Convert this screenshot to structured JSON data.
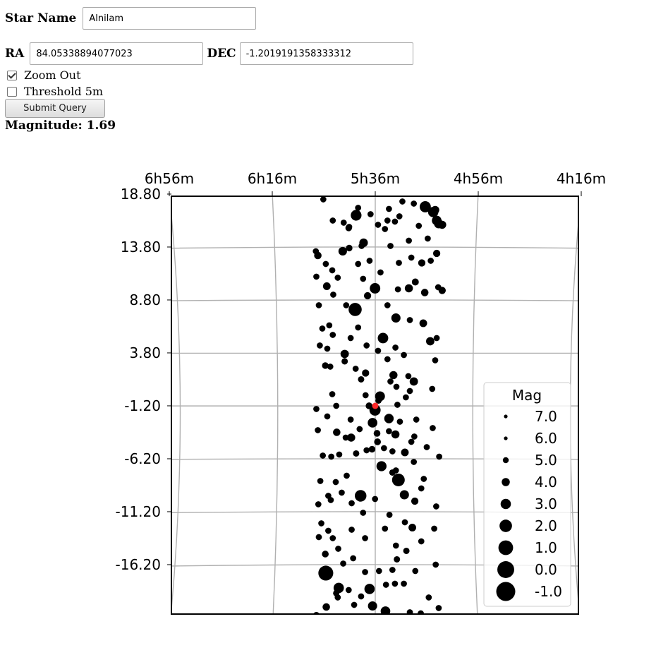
{
  "form": {
    "star_name_label": "Star Name",
    "star_name_value": "Alnilam",
    "ra_label": "RA",
    "ra_value": "84.05338894077023",
    "dec_label": "DEC",
    "dec_value": "-1.2019191358333312",
    "zoom_out_label": "Zoom Out",
    "zoom_out_checked": true,
    "threshold_label": "Threshold 5m",
    "threshold_checked": false,
    "submit_label": "Submit Query",
    "magnitude_text": "Magnitude: 1.69"
  },
  "chart_data": {
    "type": "scatter",
    "title": "",
    "x_tick_labels": [
      "6h56m",
      "6h16m",
      "5h36m",
      "4h56m",
      "4h16m"
    ],
    "y_tick_labels": [
      "18.80",
      "13.80",
      "8.80",
      "3.80",
      "-1.20",
      "-6.20",
      "-11.20",
      "-16.20"
    ],
    "y_tick_values": [
      18.8,
      13.8,
      8.8,
      3.8,
      -1.2,
      -6.2,
      -11.2,
      -16.2
    ],
    "ylim": [
      -21.0,
      18.8
    ],
    "grid": true,
    "center": {
      "ra_deg": 84.05338894077023,
      "dec_deg": -1.2019191358333312,
      "color": "#ff2a2a"
    },
    "legend": {
      "title": "Mag",
      "placement": "lower-right",
      "entries": [
        "7.0",
        "6.0",
        "5.0",
        "4.0",
        "3.0",
        "2.0",
        "1.0",
        "0.0",
        "-1.0"
      ],
      "magnitudes": [
        7.0,
        6.0,
        5.0,
        4.0,
        3.0,
        2.0,
        1.0,
        0.0,
        -1.0
      ]
    },
    "colors": {
      "star": "#000000",
      "grid": "#b0b0b0",
      "legend_overlap": "#c8c8c8"
    },
    "stars": [
      {
        "ra": 87.9,
        "dec": 16.8,
        "mag": 2.8
      },
      {
        "ra": 74.0,
        "dec": 17.6,
        "mag": 2.6
      },
      {
        "ra": 72.4,
        "dec": 17.1,
        "mag": 3.0
      },
      {
        "ra": 71.7,
        "dec": 16.3,
        "mag": 3.3
      },
      {
        "ra": 71.3,
        "dec": 16.0,
        "mag": 3.5
      },
      {
        "ra": 70.6,
        "dec": 15.9,
        "mag": 4.0
      },
      {
        "ra": 90.6,
        "dec": 13.4,
        "mag": 3.8
      },
      {
        "ra": 95.6,
        "dec": 13.0,
        "mag": 4.3
      },
      {
        "ra": 86.4,
        "dec": 14.2,
        "mag": 3.8
      },
      {
        "ra": 84.1,
        "dec": 9.9,
        "mag": 2.9
      },
      {
        "ra": 88.1,
        "dec": 7.9,
        "mag": 1.7
      },
      {
        "ra": 82.5,
        "dec": 5.2,
        "mag": 2.9
      },
      {
        "ra": 79.9,
        "dec": 7.1,
        "mag": 3.5
      },
      {
        "ra": 77.3,
        "dec": 9.9,
        "mag": 4.0
      },
      {
        "ra": 76.0,
        "dec": 10.5,
        "mag": 4.5
      },
      {
        "ra": 93.8,
        "dec": 10.1,
        "mag": 4.2
      },
      {
        "ra": 90.2,
        "dec": 3.7,
        "mag": 3.9
      },
      {
        "ra": 94.1,
        "dec": 2.6,
        "mag": 4.7
      },
      {
        "ra": 83.1,
        "dec": -0.3,
        "mag": 3.2
      },
      {
        "ra": 84.1,
        "dec": -1.6,
        "mag": 2.6
      },
      {
        "ra": 84.6,
        "dec": -2.8,
        "mag": 3.3
      },
      {
        "ra": 81.3,
        "dec": -2.4,
        "mag": 3.4
      },
      {
        "ra": 88.9,
        "dec": -4.2,
        "mag": 4.0
      },
      {
        "ra": 82.8,
        "dec": -6.9,
        "mag": 3.1
      },
      {
        "ra": 79.4,
        "dec": -8.2,
        "mag": 1.9
      },
      {
        "ra": 78.2,
        "dec": -9.6,
        "mag": 3.5
      },
      {
        "ra": 87.0,
        "dec": -9.7,
        "mag": 2.4
      },
      {
        "ra": 94.0,
        "dec": -17.0,
        "mag": 0.9
      },
      {
        "ra": 85.2,
        "dec": -18.5,
        "mag": 3.0
      },
      {
        "ra": 91.4,
        "dec": -18.4,
        "mag": 3.0
      },
      {
        "ra": 82.0,
        "dec": -20.6,
        "mag": 3.3
      },
      {
        "ra": 84.6,
        "dec": -20.1,
        "mag": 3.5
      },
      {
        "ra": 73.0,
        "dec": 4.9,
        "mag": 3.9
      },
      {
        "ra": 76.3,
        "dec": 1.1,
        "mag": 3.9
      },
      {
        "ra": 80.4,
        "dec": 1.7,
        "mag": 4.0
      },
      {
        "ra": 80.0,
        "dec": -3.9,
        "mag": 4.0
      },
      {
        "ra": 78.1,
        "dec": -5.6,
        "mag": 4.2
      },
      {
        "ra": 76.6,
        "dec": -12.7,
        "mag": 4.2
      },
      {
        "ra": 91.8,
        "dec": -3.7,
        "mag": 4.3
      },
      {
        "ra": 86.0,
        "dec": 1.9,
        "mag": 4.4
      },
      {
        "ra": 71.7,
        "dec": 13.2,
        "mag": 4.4
      },
      {
        "ra": 74.1,
        "dec": 9.5,
        "mag": 4.3
      },
      {
        "ra": 70.6,
        "dec": 9.7,
        "mag": 4.4
      },
      {
        "ra": 74.7,
        "dec": 12.3,
        "mag": 4.4
      },
      {
        "ra": 72.0,
        "dec": 17.3,
        "mag": 4.0
      },
      {
        "ra": 89.4,
        "dec": 15.6,
        "mag": 4.7
      },
      {
        "ra": 89.3,
        "dec": 13.7,
        "mag": 4.7
      },
      {
        "ra": 85.6,
        "dec": 9.2,
        "mag": 4.4
      },
      {
        "ra": 76.1,
        "dec": -10.2,
        "mag": 4.4
      },
      {
        "ra": 74.4,
        "dec": 6.6,
        "mag": 4.2
      },
      {
        "ra": 95.9,
        "dec": -21.0,
        "mag": 4.5
      },
      {
        "ra": 93.9,
        "dec": -20.2,
        "mag": 4.3
      },
      {
        "ra": 94.1,
        "dec": -15.2,
        "mag": 4.6
      },
      {
        "ra": 83.7,
        "dec": -3.8,
        "mag": 4.6
      },
      {
        "ra": 83.6,
        "dec": -4.6,
        "mag": 4.6
      },
      {
        "ra": 85.3,
        "dec": -1.2,
        "mag": 4.6
      },
      {
        "ra": 84.7,
        "dec": -5.3,
        "mag": 4.7
      },
      {
        "ra": 83.4,
        "dec": -0.7,
        "mag": 4.8
      },
      {
        "ra": 90.2,
        "dec": 3.0,
        "mag": 4.8
      },
      {
        "ra": 86.9,
        "dec": 1.3,
        "mag": 4.8
      },
      {
        "ra": 86.0,
        "dec": -0.2,
        "mag": 4.9
      },
      {
        "ra": 90.5,
        "dec": -16.1,
        "mag": 4.9
      },
      {
        "ra": 91.9,
        "dec": -18.9,
        "mag": 4.8
      },
      {
        "ra": 91.6,
        "dec": -19.3,
        "mag": 4.9
      },
      {
        "ra": 87.9,
        "dec": -5.7,
        "mag": 4.8
      },
      {
        "ra": 80.6,
        "dec": -7.5,
        "mag": 4.8
      },
      {
        "ra": 79.7,
        "dec": -15.7,
        "mag": 4.8
      },
      {
        "ra": 77.8,
        "dec": -14.9,
        "mag": 4.8
      },
      {
        "ra": 79.9,
        "dec": -14.4,
        "mag": 4.9
      },
      {
        "ra": 79.9,
        "dec": -7.3,
        "mag": 4.9
      },
      {
        "ra": 80.6,
        "dec": -5.5,
        "mag": 4.9
      },
      {
        "ra": 81.6,
        "dec": 3.2,
        "mag": 4.9
      },
      {
        "ra": 81.0,
        "dec": 1.1,
        "mag": 4.9
      },
      {
        "ra": 79.8,
        "dec": 0.6,
        "mag": 4.9
      },
      {
        "ra": 87.5,
        "dec": 12.2,
        "mag": 4.9
      },
      {
        "ra": 85.2,
        "dec": 12.5,
        "mag": 4.9
      },
      {
        "ra": 92.5,
        "dec": 9.3,
        "mag": 4.9
      },
      {
        "ra": 92.6,
        "dec": 5.5,
        "mag": 4.9
      },
      {
        "ra": 93.3,
        "dec": 6.4,
        "mag": 4.9
      },
      {
        "ra": 95.9,
        "dec": 11.0,
        "mag": 4.9
      },
      {
        "ra": 91.3,
        "dec": -5.8,
        "mag": 4.9
      },
      {
        "ra": 92.0,
        "dec": -8.4,
        "mag": 4.9
      },
      {
        "ra": 93.5,
        "dec": -9.7,
        "mag": 4.9
      },
      {
        "ra": 95.5,
        "dec": -10.5,
        "mag": 4.9
      },
      {
        "ra": 92.6,
        "dec": -13.7,
        "mag": 4.9
      },
      {
        "ra": 86.1,
        "dec": -13.7,
        "mag": 4.9
      },
      {
        "ra": 74.8,
        "dec": -9.0,
        "mag": 4.9
      },
      {
        "ra": 76.8,
        "dec": -4.6,
        "mag": 4.9
      },
      {
        "ra": 77.4,
        "dec": 1.6,
        "mag": 4.9
      },
      {
        "ra": 77.1,
        "dec": 0.2,
        "mag": 4.9
      },
      {
        "ra": 75.8,
        "dec": -2.5,
        "mag": 4.9
      },
      {
        "ra": 76.2,
        "dec": -4.1,
        "mag": 4.9
      },
      {
        "ra": 74.3,
        "dec": -8.1,
        "mag": 4.9
      },
      {
        "ra": 72.0,
        "dec": 3.1,
        "mag": 4.9
      },
      {
        "ra": 72.6,
        "dec": 0.4,
        "mag": 4.9
      },
      {
        "ra": 71.4,
        "dec": 10.0,
        "mag": 4.9
      },
      {
        "ra": 71.7,
        "dec": 5.2,
        "mag": 4.9
      },
      {
        "ra": 72.9,
        "dec": 12.5,
        "mag": 4.9
      },
      {
        "ra": 76.8,
        "dec": 12.8,
        "mag": 4.9
      },
      {
        "ra": 77.3,
        "dec": 14.4,
        "mag": 4.9
      },
      {
        "ra": 81.3,
        "dec": 17.4,
        "mag": 4.9
      },
      {
        "ra": 80.1,
        "dec": 16.2,
        "mag": 4.9
      },
      {
        "ra": 79.2,
        "dec": 16.7,
        "mag": 4.9
      },
      {
        "ra": 82.1,
        "dec": 15.5,
        "mag": 4.9
      },
      {
        "ra": 81.6,
        "dec": 16.3,
        "mag": 4.9
      },
      {
        "ra": 83.5,
        "dec": 15.9,
        "mag": 4.9
      },
      {
        "ra": 90.4,
        "dec": 16.1,
        "mag": 4.9
      },
      {
        "ra": 89.3,
        "dec": 15.7,
        "mag": 4.9
      },
      {
        "ra": 96.0,
        "dec": 13.4,
        "mag": 4.9
      },
      {
        "ra": 94.0,
        "dec": 12.2,
        "mag": 4.9
      },
      {
        "ra": 91.6,
        "dec": 10.9,
        "mag": 4.9
      },
      {
        "ra": 92.7,
        "dec": 11.6,
        "mag": 4.9
      },
      {
        "ra": 95.4,
        "dec": 8.3,
        "mag": 4.9
      },
      {
        "ra": 94.7,
        "dec": 6.1,
        "mag": 4.9
      },
      {
        "ra": 95.2,
        "dec": 4.5,
        "mag": 4.9
      },
      {
        "ra": 93.7,
        "dec": 4.2,
        "mag": 4.9
      },
      {
        "ra": 93.1,
        "dec": 2.5,
        "mag": 4.9
      },
      {
        "ra": 92.7,
        "dec": -0.1,
        "mag": 4.9
      },
      {
        "ra": 91.9,
        "dec": -1.2,
        "mag": 4.9
      },
      {
        "ra": 93.7,
        "dec": -2.2,
        "mag": 4.9
      },
      {
        "ra": 95.9,
        "dec": -1.5,
        "mag": 4.9
      },
      {
        "ra": 95.6,
        "dec": -3.5,
        "mag": 4.9
      },
      {
        "ra": 94.6,
        "dec": -5.9,
        "mag": 4.9
      },
      {
        "ra": 95.1,
        "dec": -8.3,
        "mag": 4.9
      },
      {
        "ra": 93.0,
        "dec": -10.1,
        "mag": 4.9
      },
      {
        "ra": 94.9,
        "dec": -12.3,
        "mag": 4.9
      },
      {
        "ra": 95.4,
        "dec": -13.6,
        "mag": 4.9
      },
      {
        "ra": 93.5,
        "dec": -13.0,
        "mag": 4.9
      },
      {
        "ra": 91.5,
        "dec": -14.7,
        "mag": 4.9
      },
      {
        "ra": 88.8,
        "dec": -12.9,
        "mag": 4.9
      },
      {
        "ra": 88.5,
        "dec": -15.6,
        "mag": 4.9
      },
      {
        "ra": 86.1,
        "dec": -16.9,
        "mag": 4.9
      },
      {
        "ra": 89.4,
        "dec": -18.6,
        "mag": 4.9
      },
      {
        "ra": 88.3,
        "dec": -20.0,
        "mag": 4.9
      },
      {
        "ra": 86.9,
        "dec": -19.2,
        "mag": 4.9
      },
      {
        "ra": 83.3,
        "dec": -16.8,
        "mag": 4.9
      },
      {
        "ra": 81.9,
        "dec": -18.1,
        "mag": 4.9
      },
      {
        "ra": 80.6,
        "dec": -16.7,
        "mag": 4.9
      },
      {
        "ra": 80.1,
        "dec": -18.0,
        "mag": 4.9
      },
      {
        "ra": 78.3,
        "dec": -18.0,
        "mag": 4.9
      },
      {
        "ra": 76.0,
        "dec": -16.8,
        "mag": 4.9
      },
      {
        "ra": 77.1,
        "dec": -20.7,
        "mag": 4.9
      },
      {
        "ra": 74.8,
        "dec": -14.0,
        "mag": 4.9
      },
      {
        "ra": 78.1,
        "dec": -12.2,
        "mag": 4.9
      },
      {
        "ra": 82.1,
        "dec": -12.8,
        "mag": 4.9
      },
      {
        "ra": 81.2,
        "dec": -11.5,
        "mag": 4.9
      },
      {
        "ra": 84.1,
        "dec": -10.0,
        "mag": 4.9
      },
      {
        "ra": 86.5,
        "dec": -11.3,
        "mag": 4.9
      },
      {
        "ra": 88.8,
        "dec": -10.4,
        "mag": 4.9
      },
      {
        "ra": 90.8,
        "dec": -9.4,
        "mag": 4.9
      },
      {
        "ra": 89.8,
        "dec": -7.8,
        "mag": 4.9
      },
      {
        "ra": 92.9,
        "dec": -6.0,
        "mag": 4.9
      },
      {
        "ra": 90.0,
        "dec": -4.2,
        "mag": 4.9
      },
      {
        "ra": 89.0,
        "dec": -2.5,
        "mag": 4.9
      },
      {
        "ra": 87.2,
        "dec": -3.4,
        "mag": 4.9
      },
      {
        "ra": 85.8,
        "dec": -5.4,
        "mag": 4.9
      },
      {
        "ra": 82.3,
        "dec": -5.2,
        "mag": 4.9
      },
      {
        "ra": 81.3,
        "dec": -3.6,
        "mag": 4.9
      },
      {
        "ra": 79.6,
        "dec": -1.1,
        "mag": 4.9
      },
      {
        "ra": 79.1,
        "dec": -2.7,
        "mag": 4.9
      },
      {
        "ra": 77.9,
        "dec": -0.4,
        "mag": 4.9
      },
      {
        "ra": 76.3,
        "dec": -6.5,
        "mag": 4.9
      },
      {
        "ra": 73.7,
        "dec": -5.1,
        "mag": 4.9
      },
      {
        "ra": 72.5,
        "dec": -3.3,
        "mag": 4.9
      },
      {
        "ra": 71.2,
        "dec": -6.0,
        "mag": 4.9
      },
      {
        "ra": 71.8,
        "dec": -10.7,
        "mag": 4.9
      },
      {
        "ra": 72.2,
        "dec": -12.8,
        "mag": 4.9
      },
      {
        "ra": 71.9,
        "dec": -16.2,
        "mag": 4.9
      },
      {
        "ra": 73.3,
        "dec": -19.3,
        "mag": 4.9
      },
      {
        "ra": 71.3,
        "dec": -20.3,
        "mag": 4.9
      },
      {
        "ra": 74.9,
        "dec": -20.8,
        "mag": 4.9
      },
      {
        "ra": 88.0,
        "dec": 2.3,
        "mag": 4.9
      },
      {
        "ra": 89.0,
        "dec": 5.2,
        "mag": 4.9
      },
      {
        "ra": 87.5,
        "dec": 6.2,
        "mag": 4.9
      },
      {
        "ra": 85.8,
        "dec": 4.5,
        "mag": 4.9
      },
      {
        "ra": 83.5,
        "dec": 4.0,
        "mag": 4.9
      },
      {
        "ra": 80.0,
        "dec": 4.3,
        "mag": 4.9
      },
      {
        "ra": 78.3,
        "dec": 3.6,
        "mag": 4.9
      },
      {
        "ra": 77.1,
        "dec": 6.9,
        "mag": 4.9
      },
      {
        "ra": 79.5,
        "dec": 9.8,
        "mag": 4.9
      },
      {
        "ra": 81.6,
        "dec": 8.3,
        "mag": 4.9
      },
      {
        "ra": 83.0,
        "dec": 11.4,
        "mag": 4.9
      },
      {
        "ra": 86.5,
        "dec": 10.8,
        "mag": 4.9
      },
      {
        "ra": 89.9,
        "dec": 8.3,
        "mag": 4.9
      },
      {
        "ra": 86.8,
        "dec": 13.9,
        "mag": 4.9
      },
      {
        "ra": 81.0,
        "dec": 13.9,
        "mag": 4.9
      },
      {
        "ra": 79.3,
        "dec": 12.3,
        "mag": 4.9
      },
      {
        "ra": 75.3,
        "dec": 15.8,
        "mag": 4.9
      },
      {
        "ra": 73.5,
        "dec": 14.6,
        "mag": 4.9
      },
      {
        "ra": 76.3,
        "dec": 17.9,
        "mag": 4.9
      },
      {
        "ra": 78.6,
        "dec": 18.1,
        "mag": 4.9
      },
      {
        "ra": 94.5,
        "dec": 18.3,
        "mag": 4.9
      },
      {
        "ra": 92.6,
        "dec": 16.3,
        "mag": 4.9
      },
      {
        "ra": 87.5,
        "dec": 17.5,
        "mag": 4.9
      },
      {
        "ra": 85.0,
        "dec": 16.9,
        "mag": 4.9
      }
    ]
  }
}
